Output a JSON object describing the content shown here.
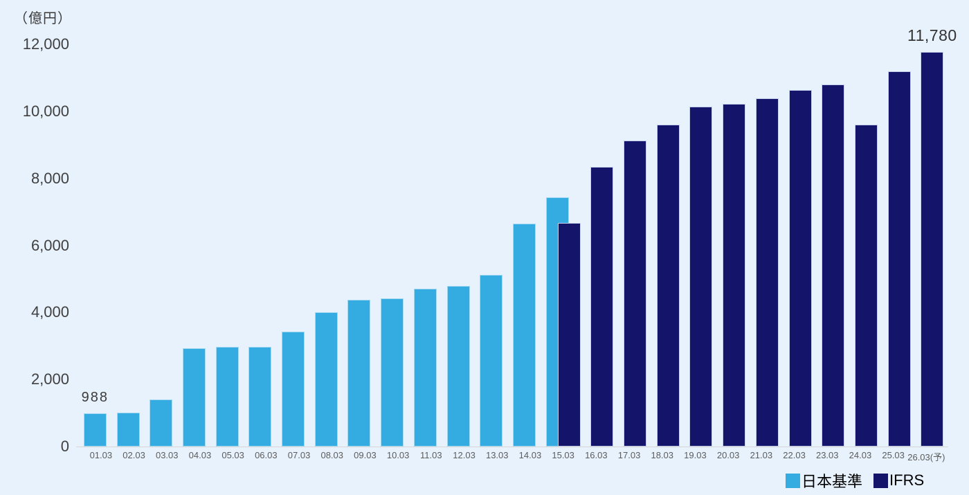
{
  "chart": {
    "unit_label": "（億円）"
  },
  "chart_data": {
    "type": "bar",
    "title": "",
    "xlabel": "",
    "ylabel": "（億円）",
    "ylim": [
      0,
      12000
    ],
    "grid": false,
    "legend_position": "bottom-right",
    "y_ticks": {
      "values": [
        0,
        2000,
        4000,
        6000,
        8000,
        10000,
        12000
      ],
      "labels": [
        "0",
        "2,000",
        "4,000",
        "6,000",
        "8,000",
        "10,000",
        "12,000"
      ]
    },
    "categories": [
      "01.03",
      "02.03",
      "03.03",
      "04.03",
      "05.03",
      "06.03",
      "07.03",
      "08.03",
      "09.03",
      "10.03",
      "11.03",
      "12.03",
      "13.03",
      "14.03",
      "15.03",
      "16.03",
      "17.03",
      "18.03",
      "19.03",
      "20.03",
      "21.03",
      "22.03",
      "23.03",
      "24.03",
      "25.03",
      "26.03(予)"
    ],
    "series": [
      {
        "name": "日本基準",
        "color_key": "japanese_gaap",
        "values": [
          988,
          1020,
          1400,
          2930,
          2970,
          2970,
          3440,
          4000,
          4390,
          4430,
          4720,
          4790,
          5120,
          6650,
          7430,
          null,
          null,
          null,
          null,
          null,
          null,
          null,
          null,
          null,
          null,
          null
        ]
      },
      {
        "name": "IFRS",
        "color_key": "ifrs",
        "values": [
          null,
          null,
          null,
          null,
          null,
          null,
          null,
          null,
          null,
          null,
          null,
          null,
          null,
          null,
          6670,
          8340,
          9130,
          9620,
          10140,
          10240,
          10390,
          10640,
          10800,
          9620,
          11210,
          11780
        ]
      }
    ],
    "annotations": [
      {
        "text": "988",
        "category_index": 0,
        "series_index": 0
      },
      {
        "text": "11,780",
        "category_index": 25,
        "series_index": 1
      }
    ],
    "colors": {
      "japanese_gaap": "#35ACE1",
      "ifrs": "#14146B",
      "background": "#E8F2FC",
      "axis_line": "#D6D6D6"
    }
  },
  "legend": {
    "items": [
      {
        "label": "日本基準"
      },
      {
        "label": "IFRS"
      }
    ]
  }
}
